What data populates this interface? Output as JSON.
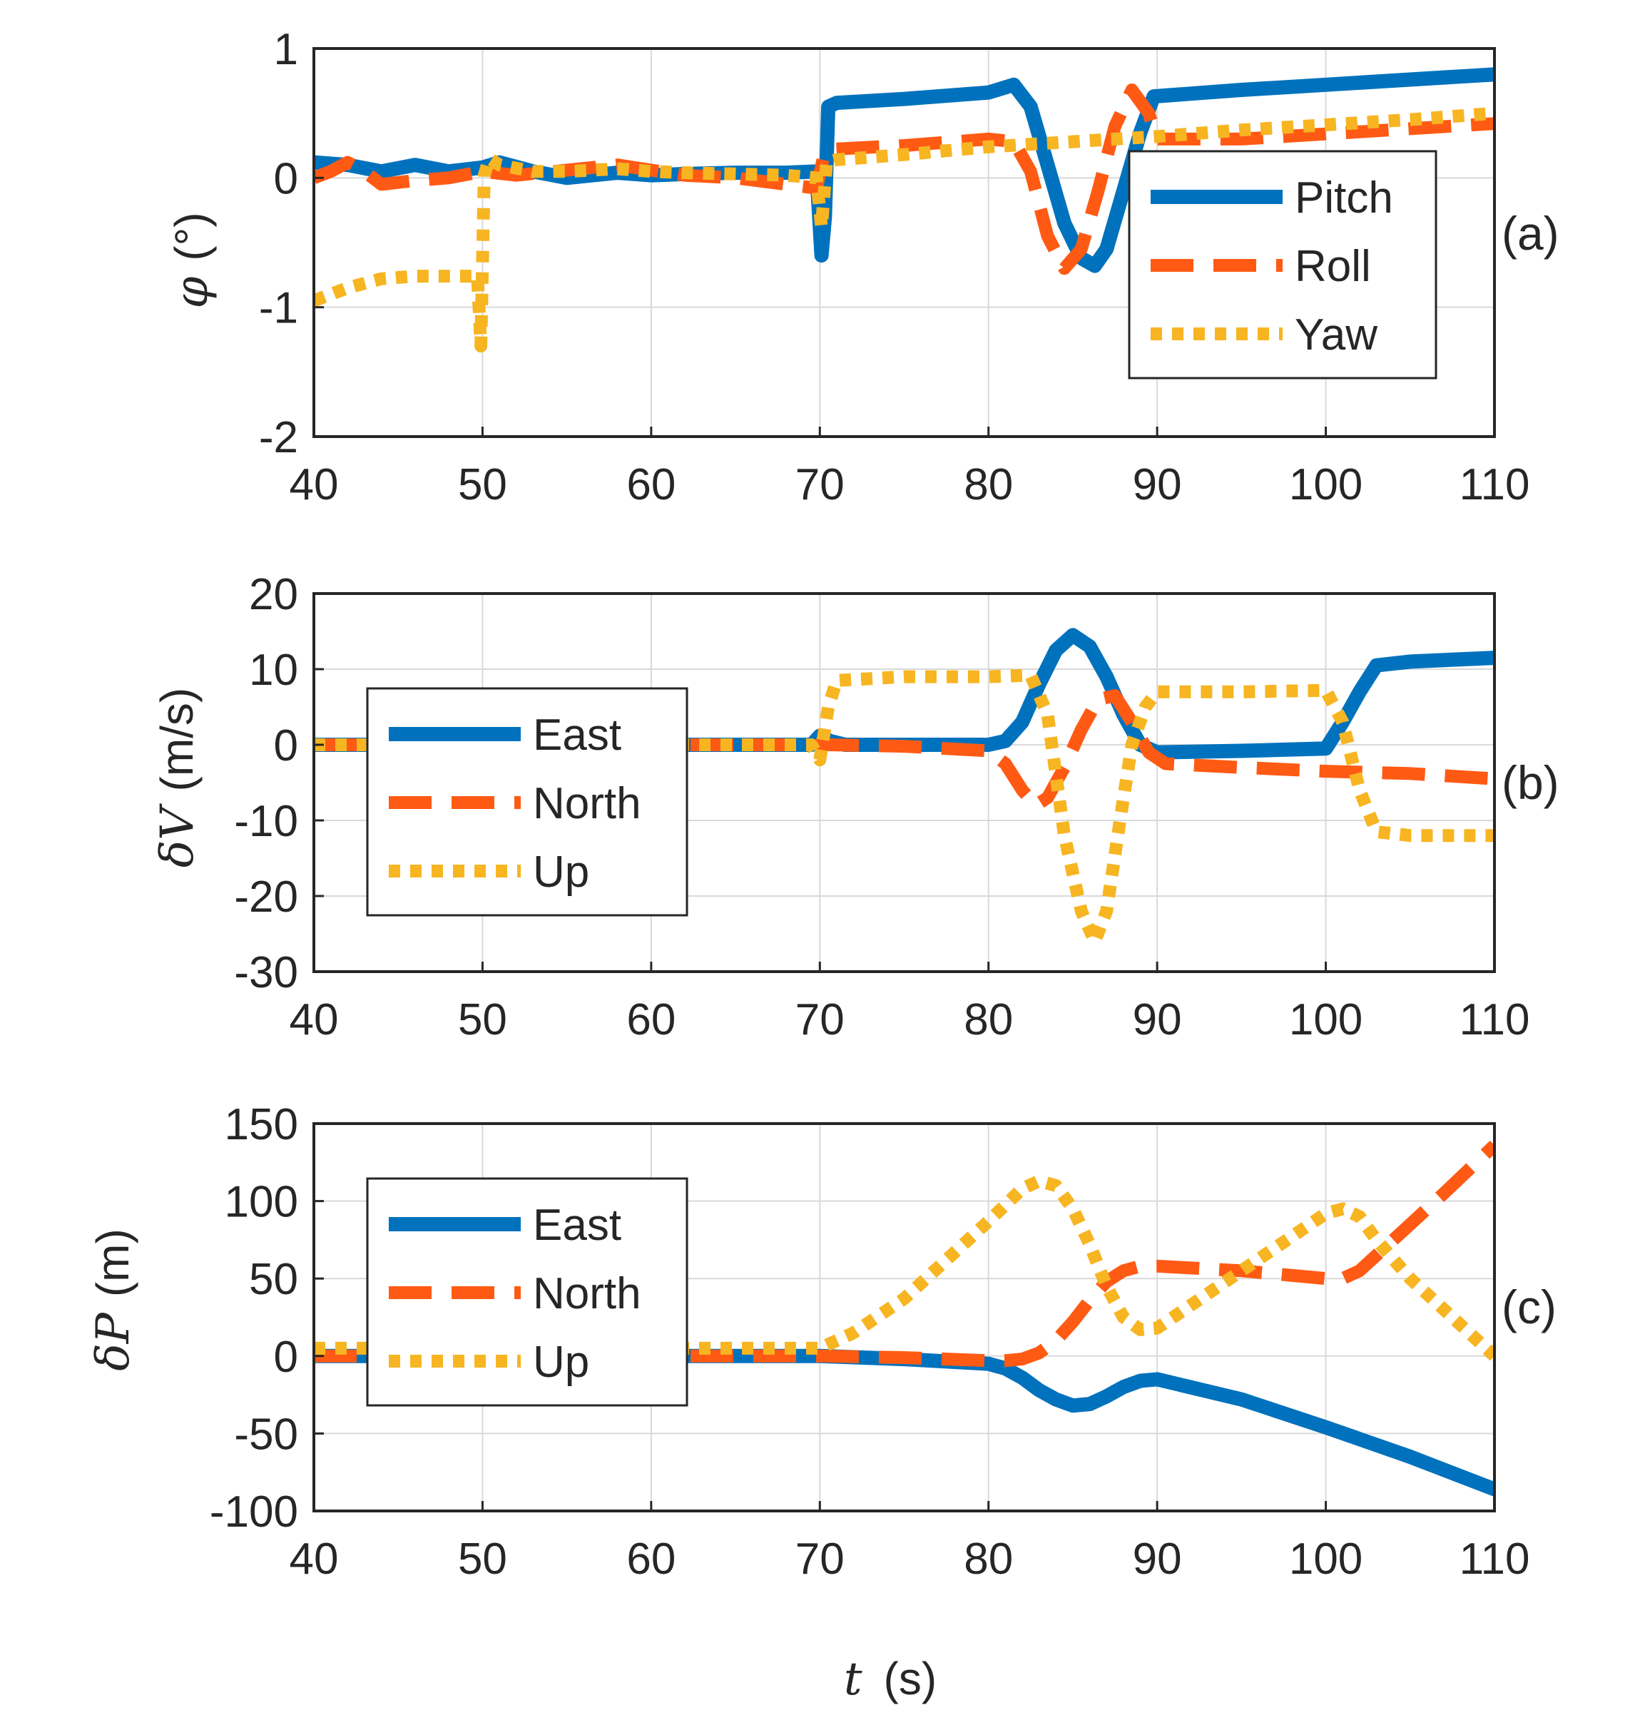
{
  "colors": {
    "blue": "#0072BD",
    "orange": "#FF5A14",
    "yellow": "#F7B522",
    "axis": "#262626",
    "grid": "#d9d9d9"
  },
  "chart_data": [
    {
      "type": "line",
      "panel_label": "(a)",
      "ylabel_symbol": "φ",
      "ylabel_unit": "(°)",
      "xlabel": "",
      "xlim": [
        40,
        110
      ],
      "ylim": [
        -2,
        1
      ],
      "xticks": [
        40,
        50,
        60,
        70,
        80,
        90,
        100,
        110
      ],
      "yticks": [
        -2,
        -1,
        0,
        1
      ],
      "legend_position": "lower-right",
      "series": [
        {
          "name": "Pitch",
          "color": "#0072BD",
          "style": "solid",
          "x": [
            40,
            42,
            44,
            46,
            48,
            50,
            51,
            53,
            55,
            58,
            60,
            62,
            65,
            68,
            69.8,
            70.1,
            70.3,
            70.5,
            71,
            75,
            80,
            81.5,
            82.5,
            83.5,
            84.5,
            85.5,
            86.3,
            87,
            88,
            89,
            89.8,
            95,
            100,
            105,
            110
          ],
          "y": [
            0.12,
            0.1,
            0.05,
            0.1,
            0.05,
            0.08,
            0.12,
            0.05,
            0.0,
            0.04,
            0.02,
            0.03,
            0.04,
            0.04,
            0.05,
            -0.6,
            -0.3,
            0.55,
            0.58,
            0.61,
            0.66,
            0.72,
            0.55,
            0.1,
            -0.35,
            -0.62,
            -0.68,
            -0.55,
            -0.1,
            0.35,
            0.63,
            0.68,
            0.72,
            0.76,
            0.8
          ]
        },
        {
          "name": "Roll",
          "color": "#FF5A14",
          "style": "dashed",
          "x": [
            40,
            41,
            42,
            43,
            44,
            46,
            48,
            50,
            52,
            55,
            58,
            60,
            62,
            65,
            68,
            69.8,
            70.2,
            70.5,
            75,
            80,
            81.5,
            82.5,
            83.5,
            84.5,
            85.5,
            86.5,
            87.5,
            88.5,
            89.5,
            90,
            95,
            100,
            105,
            110
          ],
          "y": [
            0.0,
            0.05,
            0.12,
            0.05,
            -0.05,
            -0.02,
            0.0,
            0.05,
            0.02,
            0.06,
            0.1,
            0.06,
            0.02,
            0.0,
            -0.05,
            -0.08,
            0.15,
            0.22,
            0.25,
            0.3,
            0.28,
            0.05,
            -0.45,
            -0.7,
            -0.55,
            -0.1,
            0.4,
            0.68,
            0.5,
            0.3,
            0.3,
            0.34,
            0.38,
            0.42
          ]
        },
        {
          "name": "Yaw",
          "color": "#F7B522",
          "style": "dotted",
          "x": [
            40,
            42,
            44,
            46,
            48,
            49.7,
            49.9,
            50.1,
            50.4,
            51,
            53,
            55,
            58,
            60,
            62,
            65,
            68,
            69.8,
            70.1,
            70.4,
            71,
            75,
            80,
            85,
            90,
            95,
            100,
            105,
            110
          ],
          "y": [
            -0.95,
            -0.85,
            -0.78,
            -0.76,
            -0.76,
            -0.76,
            -1.3,
            0.02,
            0.15,
            0.1,
            0.05,
            0.05,
            0.07,
            0.05,
            0.04,
            0.03,
            0.02,
            0.0,
            -0.38,
            0.12,
            0.14,
            0.18,
            0.24,
            0.28,
            0.32,
            0.37,
            0.41,
            0.45,
            0.5
          ]
        }
      ]
    },
    {
      "type": "line",
      "panel_label": "(b)",
      "ylabel_symbol": "δV",
      "ylabel_unit": "(m/s)",
      "xlabel": "",
      "xlim": [
        40,
        110
      ],
      "ylim": [
        -30,
        20
      ],
      "xticks": [
        40,
        50,
        60,
        70,
        80,
        90,
        100,
        110
      ],
      "yticks": [
        -30,
        -20,
        -10,
        0,
        10,
        20
      ],
      "legend_position": "left",
      "series": [
        {
          "name": "East",
          "color": "#0072BD",
          "style": "solid",
          "x": [
            40,
            50,
            60,
            69.5,
            70,
            70.6,
            71.5,
            75,
            80,
            81,
            82,
            83,
            84,
            85,
            86,
            87,
            88,
            89,
            90,
            95,
            100,
            101,
            102,
            103,
            105,
            110
          ],
          "y": [
            0,
            0,
            0,
            0,
            1.2,
            0.5,
            0,
            0,
            0,
            0.5,
            3,
            8,
            12.5,
            14.5,
            13,
            9,
            4,
            0,
            -1,
            -0.8,
            -0.5,
            3,
            7,
            10.5,
            11,
            11.5
          ]
        },
        {
          "name": "North",
          "color": "#FF5A14",
          "style": "dashed",
          "x": [
            40,
            50,
            60,
            69.5,
            70.5,
            75,
            80,
            81,
            82,
            82.8,
            83.5,
            84.5,
            85.5,
            86.5,
            87.5,
            88.5,
            89.5,
            90.5,
            95,
            100,
            105,
            110
          ],
          "y": [
            0,
            0,
            0,
            0,
            0,
            -0.2,
            -0.8,
            -2.5,
            -6,
            -8,
            -7,
            -3,
            2,
            6,
            6.5,
            3,
            -1,
            -2.5,
            -3,
            -3.5,
            -3.8,
            -4.5
          ]
        },
        {
          "name": "Up",
          "color": "#F7B522",
          "style": "dotted",
          "x": [
            40,
            50,
            60,
            69.5,
            70,
            70.5,
            71,
            75,
            80,
            82.5,
            83.5,
            84.5,
            85.5,
            86.3,
            87,
            87.8,
            88.5,
            89.3,
            90,
            95,
            100,
            101,
            102,
            103,
            105,
            110
          ],
          "y": [
            0,
            0,
            0,
            0,
            -2,
            5,
            8.5,
            9,
            9,
            9.2,
            4,
            -12,
            -22,
            -26,
            -22,
            -10,
            0,
            5,
            7,
            7,
            7.2,
            3,
            -6,
            -11.5,
            -12,
            -12
          ]
        }
      ]
    },
    {
      "type": "line",
      "panel_label": "(c)",
      "ylabel_symbol": "δP",
      "ylabel_unit": "(m)",
      "xlabel_symbol": "t",
      "xlabel_unit": "(s)",
      "xlim": [
        40,
        110
      ],
      "ylim": [
        -100,
        150
      ],
      "xticks": [
        40,
        50,
        60,
        70,
        80,
        90,
        100,
        110
      ],
      "yticks": [
        -100,
        -50,
        0,
        50,
        100,
        150
      ],
      "legend_position": "left",
      "series": [
        {
          "name": "East",
          "color": "#0072BD",
          "style": "solid",
          "x": [
            40,
            50,
            60,
            70,
            75,
            80,
            81,
            82,
            83,
            84,
            85,
            86,
            87,
            88,
            89,
            90,
            95,
            100,
            105,
            110
          ],
          "y": [
            0,
            0,
            0,
            0,
            -2,
            -5,
            -8,
            -14,
            -22,
            -28,
            -32,
            -31,
            -26,
            -20,
            -16,
            -15,
            -28,
            -46,
            -65,
            -86
          ]
        },
        {
          "name": "North",
          "color": "#FF5A14",
          "style": "dashed",
          "x": [
            40,
            50,
            60,
            70,
            75,
            80,
            81,
            82,
            83,
            84,
            85,
            86,
            87,
            88,
            89,
            90,
            95,
            100,
            101,
            102,
            103,
            105,
            107,
            110
          ],
          "y": [
            0,
            0,
            0,
            0,
            -1,
            -3,
            -3,
            -2,
            2,
            10,
            22,
            36,
            48,
            55,
            58,
            58,
            55,
            50,
            50,
            55,
            65,
            85,
            105,
            136
          ]
        },
        {
          "name": "Up",
          "color": "#F7B522",
          "style": "dotted",
          "x": [
            40,
            50,
            60,
            70,
            72,
            75,
            80,
            82,
            83,
            84,
            85,
            86,
            87,
            88,
            89,
            90,
            95,
            100,
            101,
            102,
            103,
            105,
            107,
            110
          ],
          "y": [
            5,
            5,
            5,
            5,
            15,
            37,
            87,
            108,
            113,
            110,
            95,
            72,
            45,
            25,
            17,
            18,
            55,
            92,
            95,
            90,
            75,
            50,
            30,
            0
          ]
        }
      ]
    }
  ]
}
